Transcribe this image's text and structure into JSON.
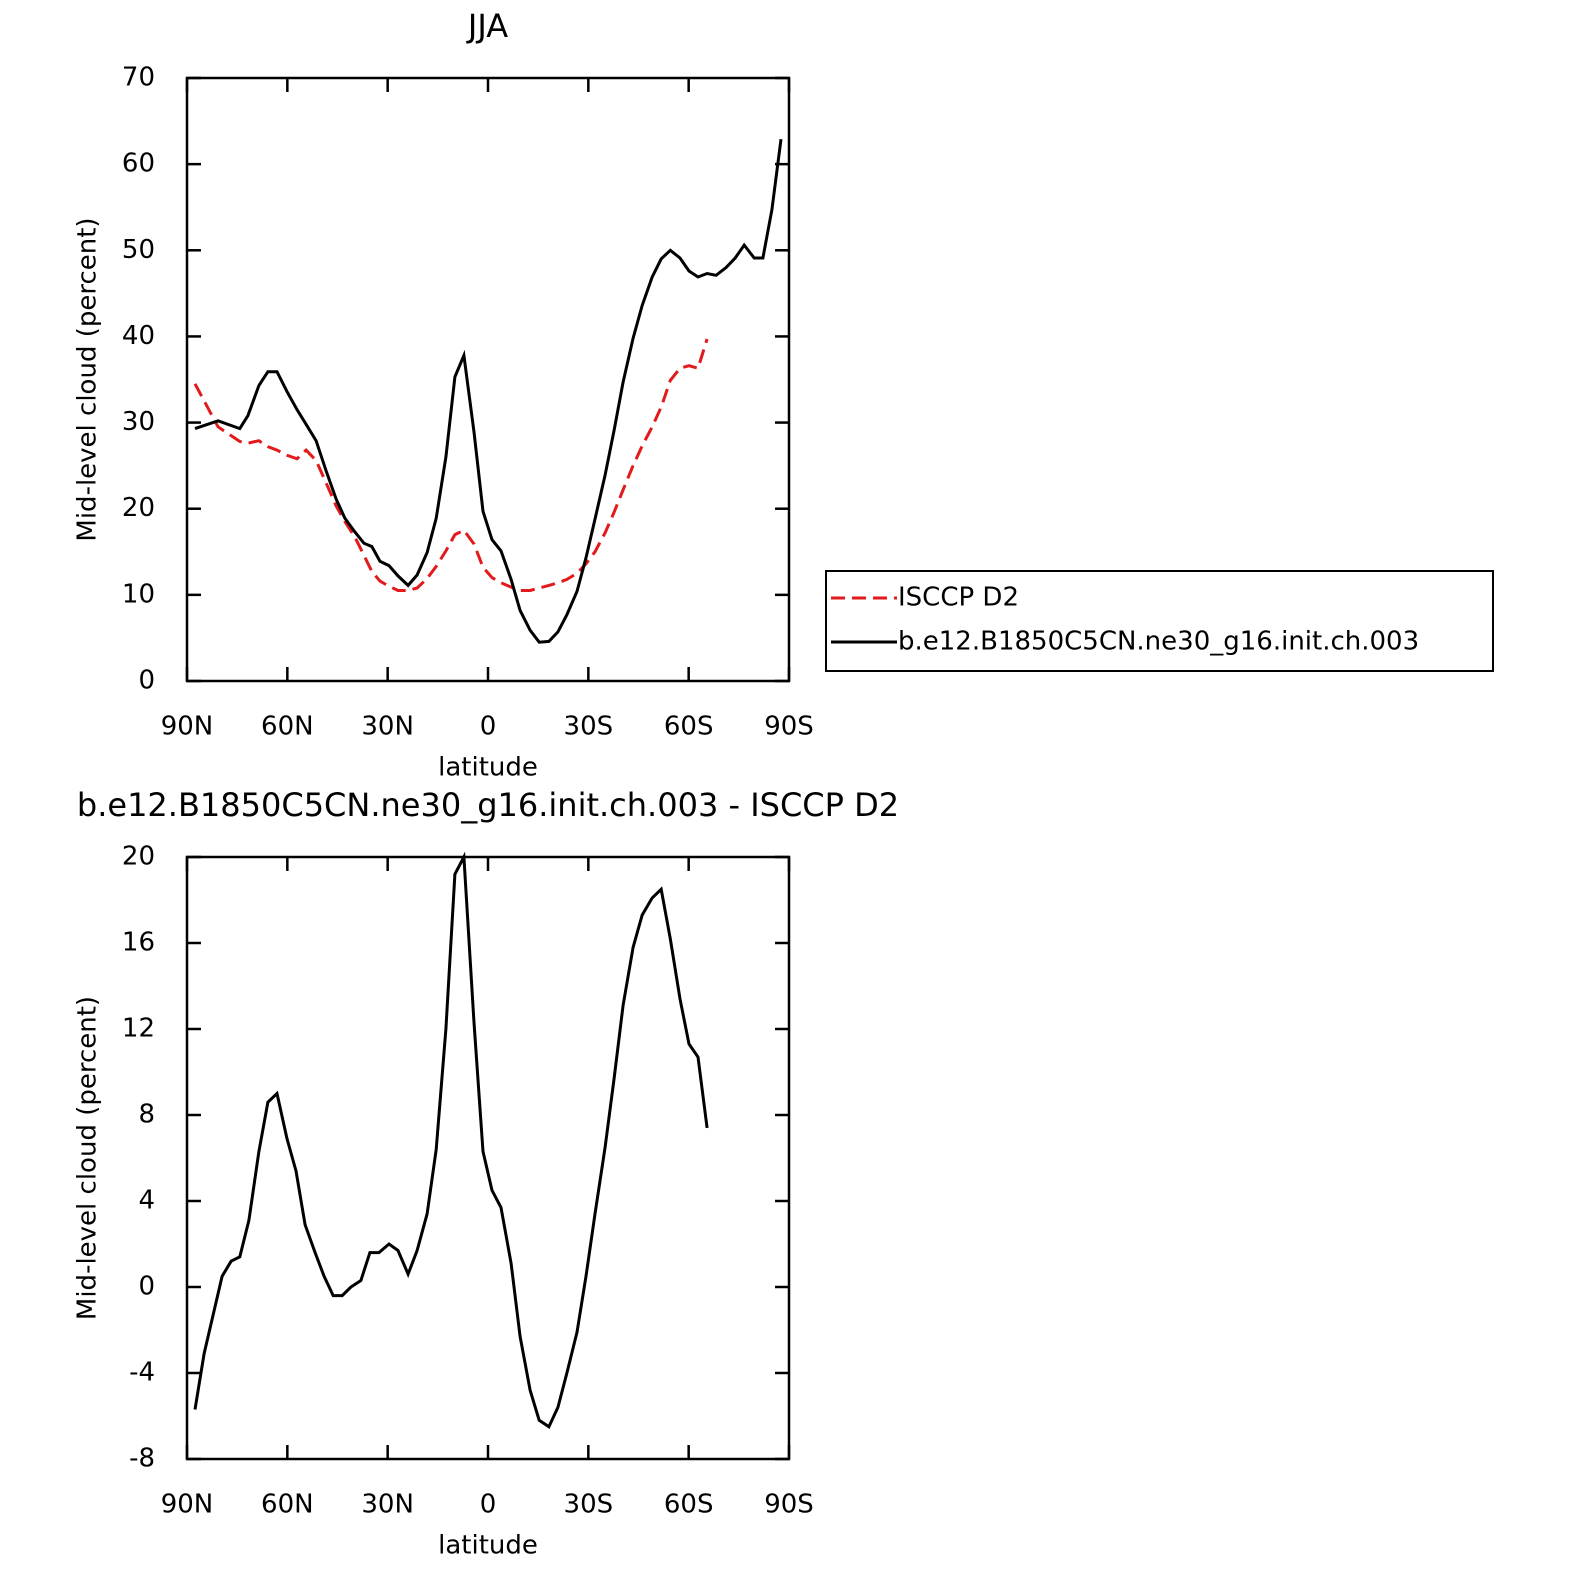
{
  "chart_data": [
    {
      "type": "line",
      "title": "JJA",
      "xlabel": "latitude",
      "ylabel": "Mid-level cloud (percent)",
      "x": [
        87.6,
        80.7,
        74.2,
        71.8,
        68.5,
        65.8,
        63.1,
        60.1,
        57.1,
        54.4,
        51.4,
        48.4,
        45.4,
        42.8,
        39.8,
        37.1,
        34.7,
        32.3,
        29.6,
        26.9,
        23.9,
        21.2,
        18.2,
        15.5,
        12.6,
        9.9,
        7.2,
        4.2,
        1.5,
        -1.2,
        -3.9,
        -6.9,
        -9.6,
        -12.6,
        -15.3,
        -18.2,
        -20.9,
        -23.6,
        -26.6,
        -29.3,
        -32.0,
        -35.0,
        -37.7,
        -40.4,
        -43.4,
        -46.1,
        -49.1,
        -51.8,
        -54.5,
        -57.4,
        -60.1,
        -62.8,
        -65.5,
        -68.2,
        -71.2,
        -73.9,
        -76.6,
        -79.6,
        -82.2,
        -84.9,
        -87.6
      ],
      "series": [
        {
          "name": "ISCCP D2",
          "color": "#e31a1c",
          "line_style": "dashed",
          "values": [
            34.5,
            29.5,
            27.8,
            27.6,
            27.9,
            27.2,
            26.8,
            26.2,
            25.8,
            26.8,
            25.6,
            23.0,
            20.3,
            18.5,
            16.7,
            14.6,
            12.7,
            11.6,
            11.0,
            10.5,
            10.5,
            10.8,
            11.9,
            13.3,
            15.1,
            17.0,
            17.5,
            15.9,
            13.2,
            12.0,
            11.4,
            10.9,
            10.5,
            10.5,
            10.8,
            11.1,
            11.4,
            11.8,
            12.5,
            13.6,
            15.0,
            17.2,
            19.6,
            22.2,
            25.0,
            27.3,
            29.5,
            31.8,
            34.9,
            36.3,
            36.6,
            36.3,
            39.7,
            null,
            null,
            null,
            null,
            null,
            null,
            null,
            null
          ]
        },
        {
          "name": "b.e12.B1850C5CN.ne30_g16.init.ch.003",
          "color": "#000000",
          "line_style": "solid",
          "values": [
            29.3,
            30.2,
            29.3,
            30.8,
            34.3,
            35.9,
            35.9,
            33.6,
            31.5,
            29.8,
            27.9,
            24.4,
            21.1,
            18.9,
            17.3,
            16.0,
            15.6,
            13.9,
            13.4,
            12.2,
            11.1,
            12.3,
            14.9,
            18.9,
            26.0,
            35.3,
            37.8,
            28.9,
            19.7,
            16.4,
            15.1,
            11.8,
            8.2,
            5.9,
            4.5,
            4.6,
            5.7,
            7.7,
            10.4,
            14.3,
            18.8,
            23.9,
            29.1,
            34.7,
            39.8,
            43.6,
            46.9,
            49.0,
            50.0,
            49.1,
            47.6,
            46.9,
            47.3,
            47.1,
            48.0,
            49.1,
            50.6,
            49.1,
            49.1,
            54.7,
            62.9
          ]
        }
      ],
      "xlim": [
        90,
        -90
      ],
      "xticks": [
        {
          "value": 90,
          "label": "90N"
        },
        {
          "value": 60,
          "label": "60N"
        },
        {
          "value": 30,
          "label": "30N"
        },
        0,
        {
          "value": -30,
          "label": "30S"
        },
        {
          "value": -60,
          "label": "60S"
        },
        {
          "value": -90,
          "label": "90S"
        }
      ],
      "ylim": [
        0,
        70
      ],
      "yticks": [
        0,
        10,
        20,
        30,
        40,
        50,
        60,
        70
      ],
      "legend": "right"
    },
    {
      "type": "line",
      "title": "b.e12.B1850C5CN.ne30_g16.init.ch.003 - ISCCP D2",
      "xlabel": "latitude",
      "ylabel": "Mid-level cloud (percent)",
      "x": [
        87.6,
        84.9,
        82.2,
        79.5,
        76.8,
        74.2,
        71.5,
        68.5,
        65.8,
        63.1,
        60.1,
        57.4,
        54.7,
        51.7,
        49.0,
        46.3,
        43.6,
        41.0,
        38.0,
        35.3,
        32.6,
        29.6,
        26.9,
        23.9,
        21.2,
        18.2,
        15.5,
        12.6,
        9.9,
        7.2,
        4.2,
        1.5,
        -1.2,
        -3.9,
        -6.9,
        -9.6,
        -12.6,
        -15.3,
        -18.2,
        -20.9,
        -23.6,
        -26.6,
        -29.3,
        -32.0,
        -35.0,
        -37.7,
        -40.4,
        -43.4,
        -46.1,
        -49.1,
        -51.8,
        -54.5,
        -57.4,
        -60.1,
        -62.8,
        -65.5
      ],
      "series": [
        {
          "color": "#000000",
          "line_style": "solid",
          "values": [
            -5.7,
            -3.1,
            -1.3,
            0.5,
            1.2,
            1.4,
            3.1,
            6.3,
            8.6,
            9.0,
            6.9,
            5.4,
            2.9,
            1.6,
            0.5,
            -0.4,
            -0.4,
            0.0,
            0.3,
            1.6,
            1.6,
            2.0,
            1.7,
            0.6,
            1.7,
            3.4,
            6.4,
            12.0,
            19.2,
            20.0,
            12.3,
            6.3,
            4.5,
            3.7,
            1.1,
            -2.3,
            -4.8,
            -6.2,
            -6.5,
            -5.6,
            -4.0,
            -2.1,
            0.5,
            3.4,
            6.5,
            9.7,
            13.1,
            15.8,
            17.3,
            18.1,
            18.5,
            16.2,
            13.4,
            11.3,
            10.7,
            7.4
          ]
        }
      ],
      "xlim": [
        90,
        -90
      ],
      "xticks": [
        {
          "value": 90,
          "label": "90N"
        },
        {
          "value": 60,
          "label": "60N"
        },
        {
          "value": 30,
          "label": "30N"
        },
        0,
        {
          "value": -30,
          "label": "30S"
        },
        {
          "value": -60,
          "label": "60S"
        },
        {
          "value": -90,
          "label": "90S"
        }
      ],
      "ylim": [
        -8,
        20
      ],
      "yticks": [
        -8,
        -4,
        0,
        4,
        8,
        12,
        16,
        20
      ]
    }
  ]
}
